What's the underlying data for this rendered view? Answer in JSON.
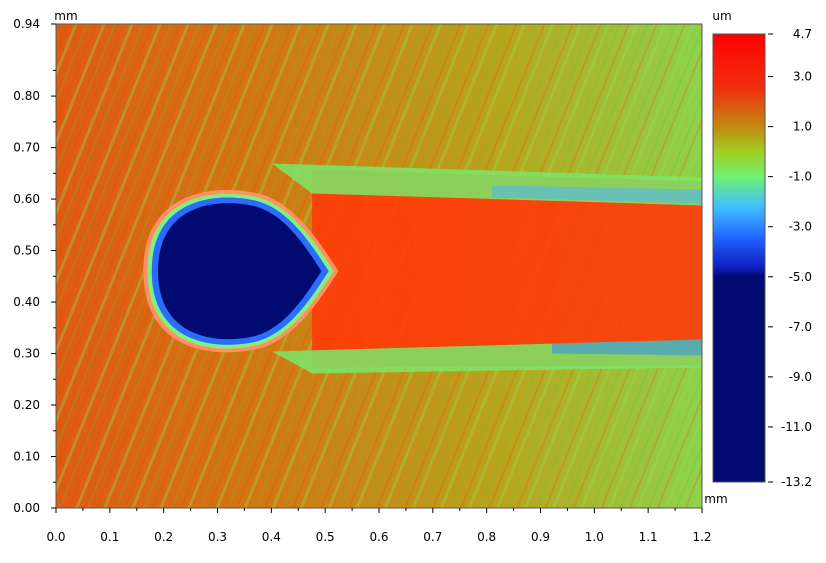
{
  "chart_data": {
    "type": "heatmap",
    "title": "",
    "x_unit": "mm",
    "y_unit": "mm",
    "colorbar_unit": "um",
    "xlim": [
      0.0,
      1.2
    ],
    "ylim": [
      0.0,
      0.94
    ],
    "x_ticks": [
      "0.0",
      "0.1",
      "0.2",
      "0.3",
      "0.4",
      "0.5",
      "0.6",
      "0.7",
      "0.8",
      "0.9",
      "1.0",
      "1.1",
      "1.2"
    ],
    "y_ticks": [
      "0.00",
      "0.10",
      "0.20",
      "0.30",
      "0.40",
      "0.50",
      "0.60",
      "0.70",
      "0.80",
      "0.94"
    ],
    "colorbar_range": [
      -13.2,
      4.7
    ],
    "colorbar_ticks": [
      "4.7",
      "3.0",
      "1.0",
      "-1.0",
      "-3.0",
      "-5.0",
      "-7.0",
      "-9.0",
      "-11.0",
      "-13.2"
    ],
    "colorbar_stops": [
      {
        "value": 4.7,
        "color": "#ff0000"
      },
      {
        "value": 2.5,
        "color": "#f03010"
      },
      {
        "value": 1.0,
        "color": "#c08a10"
      },
      {
        "value": 0.0,
        "color": "#a0d020"
      },
      {
        "value": -1.0,
        "color": "#70f070"
      },
      {
        "value": -2.2,
        "color": "#40c0ff"
      },
      {
        "value": -3.5,
        "color": "#2060ff"
      },
      {
        "value": -4.6,
        "color": "#1020c0"
      },
      {
        "value": -5.0,
        "color": "#000a70"
      },
      {
        "value": -13.2,
        "color": "#000a70"
      }
    ],
    "features": [
      {
        "name": "crater",
        "center_mm": [
          0.33,
          0.46
        ],
        "depth_um": -13.2
      },
      {
        "name": "tail",
        "x_from_mm": 0.55,
        "x_to_mm": 1.2,
        "y_center_mm": 0.44,
        "height_um": 4.7
      }
    ]
  }
}
